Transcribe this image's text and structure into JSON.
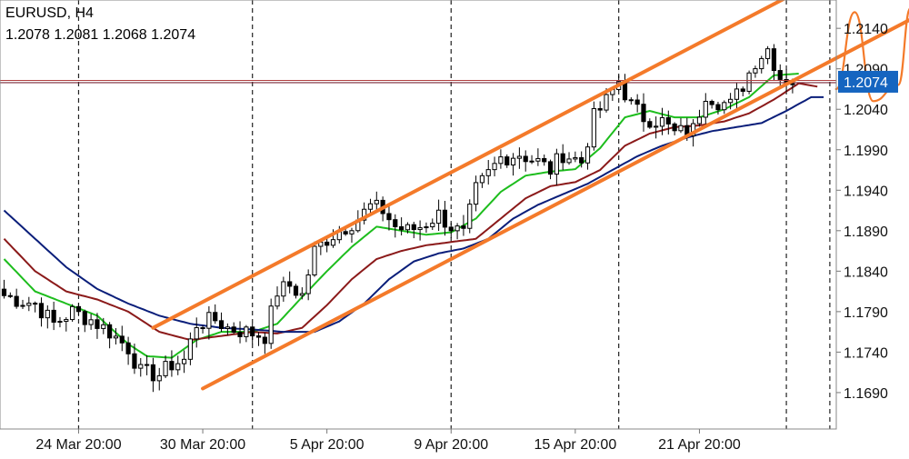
{
  "header": {
    "symbol_timeframe": "EURUSD, H4",
    "ohlc": "1.2078 1.2081 1.2068 1.2074"
  },
  "chart_data": {
    "type": "candlestick",
    "symbol": "EURUSD",
    "timeframe": "H4",
    "ylim": [
      1.1645,
      1.2175
    ],
    "y_ticks": [
      1.169,
      1.174,
      1.179,
      1.184,
      1.189,
      1.194,
      1.199,
      1.204,
      1.209,
      1.214
    ],
    "y_tick_labels": [
      "1.1690",
      "1.1740",
      "1.1790",
      "1.1840",
      "1.1890",
      "1.1940",
      "1.1990",
      "1.2040",
      "1.2090",
      "1.2140"
    ],
    "x_labels": [
      "24 Mar 20:00",
      "30 Mar 20:00",
      "5 Apr 20:00",
      "9 Apr 20:00",
      "15 Apr 20:00",
      "21 Apr 20:00"
    ],
    "x_label_bars": [
      12,
      32,
      52,
      72,
      92,
      112
    ],
    "day_separator_bars": [
      12,
      40,
      72,
      99,
      126,
      133
    ],
    "bar_count": 140,
    "current_price": 1.2074,
    "current_price_label": "1.2074",
    "colors": {
      "candle": "#000000",
      "ma_fast": "#1dbd1d",
      "ma_mid": "#8b1a1a",
      "ma_slow": "#0a1e7a",
      "annotation": "#f47a2a",
      "price_line": "#7a2a3a",
      "price_label_bg": "#1565c0",
      "grid": "#bdbdbd"
    },
    "anchors": [
      [
        0,
        1.181
      ],
      [
        2,
        1.1805
      ],
      [
        5,
        1.18
      ],
      [
        8,
        1.1775
      ],
      [
        11,
        1.179
      ],
      [
        14,
        1.178
      ],
      [
        17,
        1.1765
      ],
      [
        20,
        1.1745
      ],
      [
        22,
        1.1715
      ],
      [
        25,
        1.1712
      ],
      [
        27,
        1.1725
      ],
      [
        29,
        1.173
      ],
      [
        31,
        1.1775
      ],
      [
        34,
        1.178
      ],
      [
        36,
        1.177
      ],
      [
        39,
        1.1765
      ],
      [
        42,
        1.176
      ],
      [
        44,
        1.1815
      ],
      [
        46,
        1.1822
      ],
      [
        48,
        1.181
      ],
      [
        50,
        1.1865
      ],
      [
        52,
        1.188
      ],
      [
        55,
        1.1895
      ],
      [
        57,
        1.1905
      ],
      [
        59,
        1.192
      ],
      [
        61,
        1.1915
      ],
      [
        63,
        1.1895
      ],
      [
        65,
        1.189
      ],
      [
        67,
        1.1895
      ],
      [
        70,
        1.191
      ],
      [
        72,
        1.1895
      ],
      [
        74,
        1.1885
      ],
      [
        76,
        1.194
      ],
      [
        78,
        1.196
      ],
      [
        80,
        1.198
      ],
      [
        83,
        1.1985
      ],
      [
        86,
        1.1975
      ],
      [
        88,
        1.1965
      ],
      [
        90,
        1.1985
      ],
      [
        93,
        1.1975
      ],
      [
        95,
        1.203
      ],
      [
        97,
        1.205
      ],
      [
        99,
        1.2075
      ],
      [
        101,
        1.2045
      ],
      [
        103,
        1.203
      ],
      [
        106,
        1.2025
      ],
      [
        108,
        1.201
      ],
      [
        111,
        1.2015
      ],
      [
        113,
        1.206
      ],
      [
        115,
        1.205
      ],
      [
        117,
        1.2045
      ],
      [
        119,
        1.207
      ],
      [
        121,
        1.21
      ],
      [
        123,
        1.2115
      ],
      [
        125,
        1.208
      ],
      [
        127,
        1.2075
      ]
    ],
    "moving_averages": [
      {
        "name": "ma_fast",
        "values": [
          [
            0,
            1.1855
          ],
          [
            5,
            1.1815
          ],
          [
            10,
            1.18
          ],
          [
            15,
            1.1785
          ],
          [
            20,
            1.175
          ],
          [
            23,
            1.1735
          ],
          [
            27,
            1.1733
          ],
          [
            31,
            1.1755
          ],
          [
            35,
            1.1765
          ],
          [
            40,
            1.1765
          ],
          [
            44,
            1.1775
          ],
          [
            48,
            1.1808
          ],
          [
            52,
            1.184
          ],
          [
            56,
            1.187
          ],
          [
            60,
            1.1895
          ],
          [
            64,
            1.189
          ],
          [
            68,
            1.1885
          ],
          [
            72,
            1.1888
          ],
          [
            76,
            1.1905
          ],
          [
            80,
            1.1938
          ],
          [
            84,
            1.1958
          ],
          [
            88,
            1.1963
          ],
          [
            92,
            1.1966
          ],
          [
            96,
            1.1992
          ],
          [
            100,
            1.203
          ],
          [
            104,
            1.2038
          ],
          [
            108,
            1.203
          ],
          [
            112,
            1.203
          ],
          [
            116,
            1.204
          ],
          [
            120,
            1.2055
          ],
          [
            124,
            1.2082
          ],
          [
            128,
            1.2084
          ]
        ]
      },
      {
        "name": "ma_mid",
        "values": [
          [
            0,
            1.188
          ],
          [
            5,
            1.184
          ],
          [
            10,
            1.1815
          ],
          [
            15,
            1.1805
          ],
          [
            20,
            1.179
          ],
          [
            25,
            1.1765
          ],
          [
            30,
            1.1755
          ],
          [
            35,
            1.176
          ],
          [
            40,
            1.1765
          ],
          [
            44,
            1.1763
          ],
          [
            48,
            1.177
          ],
          [
            52,
            1.1798
          ],
          [
            56,
            1.183
          ],
          [
            60,
            1.1855
          ],
          [
            64,
            1.1865
          ],
          [
            68,
            1.1872
          ],
          [
            72,
            1.1876
          ],
          [
            76,
            1.188
          ],
          [
            80,
            1.1905
          ],
          [
            84,
            1.193
          ],
          [
            88,
            1.1945
          ],
          [
            92,
            1.195
          ],
          [
            96,
            1.1965
          ],
          [
            100,
            1.1995
          ],
          [
            104,
            1.201
          ],
          [
            108,
            1.2018
          ],
          [
            112,
            1.202
          ],
          [
            116,
            1.2025
          ],
          [
            120,
            1.2035
          ],
          [
            124,
            1.2052
          ],
          [
            128,
            1.2072
          ],
          [
            131,
            1.2068
          ]
        ]
      },
      {
        "name": "ma_slow",
        "values": [
          [
            0,
            1.1915
          ],
          [
            5,
            1.188
          ],
          [
            10,
            1.1845
          ],
          [
            15,
            1.1818
          ],
          [
            20,
            1.18
          ],
          [
            25,
            1.1785
          ],
          [
            30,
            1.1775
          ],
          [
            35,
            1.177
          ],
          [
            40,
            1.1768
          ],
          [
            45,
            1.1765
          ],
          [
            50,
            1.1765
          ],
          [
            54,
            1.1778
          ],
          [
            58,
            1.18
          ],
          [
            62,
            1.183
          ],
          [
            66,
            1.1852
          ],
          [
            70,
            1.1862
          ],
          [
            74,
            1.1868
          ],
          [
            78,
            1.188
          ],
          [
            82,
            1.1905
          ],
          [
            86,
            1.1922
          ],
          [
            90,
            1.1935
          ],
          [
            94,
            1.1948
          ],
          [
            98,
            1.1965
          ],
          [
            102,
            1.1982
          ],
          [
            106,
            1.1995
          ],
          [
            110,
            1.2005
          ],
          [
            114,
            1.2013
          ],
          [
            118,
            1.2018
          ],
          [
            122,
            1.2023
          ],
          [
            126,
            1.2038
          ],
          [
            130,
            1.2055
          ],
          [
            132,
            1.2055
          ]
        ]
      }
    ],
    "annotations": {
      "channel_lines": [
        {
          "from": [
            24,
            1.177
          ],
          "to": [
            139,
            1.223
          ]
        },
        {
          "from": [
            32,
            1.1695
          ],
          "to": [
            147,
            1.2155
          ]
        }
      ],
      "forecast_path": [
        [
          134,
          1.2065
        ],
        [
          137,
          1.216
        ],
        [
          140,
          1.205
        ],
        [
          144,
          1.207
        ],
        [
          146,
          1.2165
        ]
      ]
    }
  }
}
